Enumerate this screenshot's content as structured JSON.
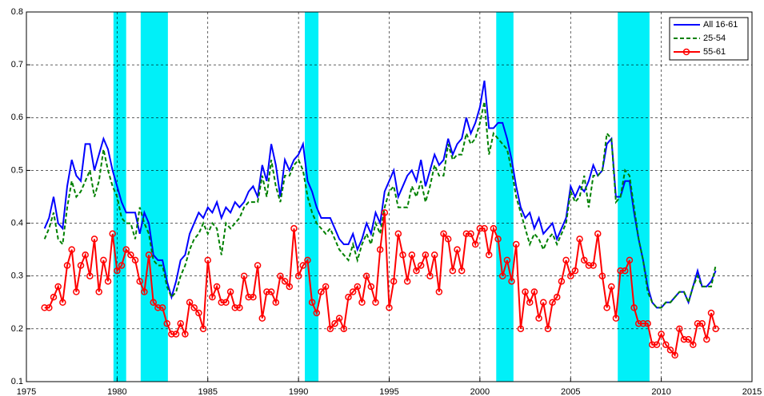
{
  "chart_data": {
    "type": "line",
    "x": [
      1976,
      1976.25,
      1976.5,
      1976.75,
      1977,
      1977.25,
      1977.5,
      1977.75,
      1978,
      1978.25,
      1978.5,
      1978.75,
      1979,
      1979.25,
      1979.5,
      1979.75,
      1980,
      1980.25,
      1980.5,
      1980.75,
      1981,
      1981.25,
      1981.5,
      1981.75,
      1982,
      1982.25,
      1982.5,
      1982.75,
      1983,
      1983.25,
      1983.5,
      1983.75,
      1984,
      1984.25,
      1984.5,
      1984.75,
      1985,
      1985.25,
      1985.5,
      1985.75,
      1986,
      1986.25,
      1986.5,
      1986.75,
      1987,
      1987.25,
      1987.5,
      1987.75,
      1988,
      1988.25,
      1988.5,
      1988.75,
      1989,
      1989.25,
      1989.5,
      1989.75,
      1990,
      1990.25,
      1990.5,
      1990.75,
      1991,
      1991.25,
      1991.5,
      1991.75,
      1992,
      1992.25,
      1992.5,
      1992.75,
      1993,
      1993.25,
      1993.5,
      1993.75,
      1994,
      1994.25,
      1994.5,
      1994.75,
      1995,
      1995.25,
      1995.5,
      1995.75,
      1996,
      1996.25,
      1996.5,
      1996.75,
      1997,
      1997.25,
      1997.5,
      1997.75,
      1998,
      1998.25,
      1998.5,
      1998.75,
      1999,
      1999.25,
      1999.5,
      1999.75,
      2000,
      2000.25,
      2000.5,
      2000.75,
      2001,
      2001.25,
      2001.5,
      2001.75,
      2002,
      2002.25,
      2002.5,
      2002.75,
      2003,
      2003.25,
      2003.5,
      2003.75,
      2004,
      2004.25,
      2004.5,
      2004.75,
      2005,
      2005.25,
      2005.5,
      2005.75,
      2006,
      2006.25,
      2006.5,
      2006.75,
      2007,
      2007.25,
      2007.5,
      2007.75,
      2008,
      2008.25,
      2008.5,
      2008.75,
      2009,
      2009.25,
      2009.5,
      2009.75,
      2010,
      2010.25,
      2010.5,
      2010.75,
      2011,
      2011.25,
      2011.5,
      2011.75,
      2012,
      2012.25,
      2012.5,
      2012.75,
      2013
    ],
    "series": [
      {
        "name": "All 16-61",
        "color": "#0000ff",
        "style": "solid",
        "marker": false,
        "values": [
          0.39,
          0.41,
          0.45,
          0.4,
          0.39,
          0.47,
          0.52,
          0.49,
          0.48,
          0.55,
          0.55,
          0.5,
          0.53,
          0.56,
          0.54,
          0.5,
          0.47,
          0.44,
          0.42,
          0.42,
          0.42,
          0.38,
          0.42,
          0.4,
          0.34,
          0.33,
          0.33,
          0.29,
          0.26,
          0.29,
          0.33,
          0.34,
          0.38,
          0.4,
          0.42,
          0.41,
          0.43,
          0.42,
          0.44,
          0.41,
          0.43,
          0.42,
          0.44,
          0.43,
          0.44,
          0.46,
          0.47,
          0.45,
          0.51,
          0.48,
          0.55,
          0.51,
          0.45,
          0.52,
          0.5,
          0.52,
          0.53,
          0.55,
          0.48,
          0.46,
          0.43,
          0.41,
          0.41,
          0.41,
          0.39,
          0.37,
          0.36,
          0.36,
          0.38,
          0.35,
          0.37,
          0.4,
          0.38,
          0.42,
          0.4,
          0.46,
          0.48,
          0.5,
          0.45,
          0.47,
          0.49,
          0.5,
          0.48,
          0.52,
          0.47,
          0.5,
          0.53,
          0.51,
          0.52,
          0.56,
          0.53,
          0.55,
          0.56,
          0.6,
          0.57,
          0.59,
          0.62,
          0.67,
          0.58,
          0.58,
          0.59,
          0.59,
          0.56,
          0.52,
          0.47,
          0.43,
          0.41,
          0.42,
          0.39,
          0.41,
          0.38,
          0.39,
          0.4,
          0.37,
          0.39,
          0.41,
          0.47,
          0.45,
          0.47,
          0.46,
          0.48,
          0.51,
          0.49,
          0.5,
          0.55,
          0.56,
          0.45,
          0.45,
          0.48,
          0.48,
          0.42,
          0.37,
          0.33,
          0.28,
          0.25,
          0.24,
          0.24,
          0.25,
          0.25,
          0.26,
          0.27,
          0.27,
          0.25,
          0.28,
          0.31,
          0.28,
          0.28,
          0.29,
          0.31
        ]
      },
      {
        "name": "25-54",
        "color": "#008000",
        "style": "dashed",
        "marker": false,
        "values": [
          0.37,
          0.39,
          0.42,
          0.37,
          0.36,
          0.43,
          0.48,
          0.45,
          0.46,
          0.48,
          0.5,
          0.45,
          0.48,
          0.54,
          0.5,
          0.47,
          0.45,
          0.41,
          0.4,
          0.4,
          0.37,
          0.43,
          0.4,
          0.38,
          0.33,
          0.32,
          0.32,
          0.28,
          0.26,
          0.27,
          0.3,
          0.32,
          0.35,
          0.37,
          0.38,
          0.4,
          0.38,
          0.4,
          0.39,
          0.34,
          0.4,
          0.39,
          0.4,
          0.41,
          0.43,
          0.44,
          0.44,
          0.44,
          0.49,
          0.45,
          0.52,
          0.47,
          0.44,
          0.49,
          0.49,
          0.51,
          0.52,
          0.5,
          0.45,
          0.42,
          0.4,
          0.39,
          0.38,
          0.39,
          0.37,
          0.35,
          0.34,
          0.33,
          0.36,
          0.33,
          0.36,
          0.38,
          0.36,
          0.4,
          0.38,
          0.43,
          0.46,
          0.47,
          0.43,
          0.43,
          0.43,
          0.47,
          0.45,
          0.48,
          0.44,
          0.47,
          0.51,
          0.49,
          0.49,
          0.55,
          0.52,
          0.53,
          0.53,
          0.57,
          0.55,
          0.56,
          0.59,
          0.63,
          0.53,
          0.57,
          0.56,
          0.55,
          0.54,
          0.5,
          0.45,
          0.42,
          0.39,
          0.36,
          0.38,
          0.37,
          0.35,
          0.37,
          0.38,
          0.36,
          0.38,
          0.4,
          0.46,
          0.44,
          0.45,
          0.49,
          0.43,
          0.49,
          0.49,
          0.5,
          0.57,
          0.56,
          0.44,
          0.45,
          0.5,
          0.49,
          0.43,
          0.37,
          0.33,
          0.27,
          0.25,
          0.24,
          0.24,
          0.25,
          0.25,
          0.26,
          0.27,
          0.27,
          0.25,
          0.28,
          0.3,
          0.28,
          0.28,
          0.28,
          0.32
        ]
      },
      {
        "name": "55-61",
        "color": "#ff0000",
        "style": "solid",
        "marker": true,
        "values": [
          0.24,
          0.24,
          0.26,
          0.28,
          0.25,
          0.32,
          0.35,
          0.27,
          0.32,
          0.34,
          0.3,
          0.37,
          0.27,
          0.33,
          0.29,
          0.38,
          0.31,
          0.32,
          0.35,
          0.34,
          0.33,
          0.29,
          0.27,
          0.34,
          0.25,
          0.24,
          0.24,
          0.21,
          0.19,
          0.19,
          0.21,
          0.19,
          0.25,
          0.24,
          0.23,
          0.2,
          0.33,
          0.26,
          0.28,
          0.25,
          0.25,
          0.27,
          0.24,
          0.24,
          0.3,
          0.26,
          0.26,
          0.32,
          0.22,
          0.27,
          0.27,
          0.25,
          0.3,
          0.29,
          0.28,
          0.39,
          0.3,
          0.32,
          0.33,
          0.25,
          0.23,
          0.27,
          0.28,
          0.2,
          0.21,
          0.22,
          0.2,
          0.26,
          0.27,
          0.28,
          0.25,
          0.3,
          0.28,
          0.25,
          0.35,
          0.42,
          0.24,
          0.29,
          0.38,
          0.34,
          0.29,
          0.34,
          0.31,
          0.32,
          0.34,
          0.3,
          0.34,
          0.27,
          0.38,
          0.37,
          0.31,
          0.35,
          0.31,
          0.38,
          0.38,
          0.36,
          0.39,
          0.39,
          0.34,
          0.39,
          0.37,
          0.3,
          0.33,
          0.29,
          0.36,
          0.2,
          0.27,
          0.25,
          0.27,
          0.22,
          0.25,
          0.2,
          0.25,
          0.26,
          0.29,
          0.33,
          0.3,
          0.31,
          0.37,
          0.33,
          0.32,
          0.32,
          0.38,
          0.3,
          0.24,
          0.28,
          0.22,
          0.31,
          0.31,
          0.33,
          0.24,
          0.21,
          0.21,
          0.21,
          0.17,
          0.17,
          0.19,
          0.17,
          0.16,
          0.15,
          0.2,
          0.18,
          0.18,
          0.17,
          0.21,
          0.21,
          0.18,
          0.23,
          0.2
        ]
      }
    ],
    "shaded_periods": [
      [
        1979.8,
        1980.5
      ],
      [
        1981.3,
        1982.8
      ],
      [
        1990.35,
        1991.1
      ],
      [
        2000.9,
        2001.85
      ],
      [
        2007.6,
        2009.35
      ]
    ],
    "shade_color": "#00f0f8",
    "xlim": [
      1975,
      2015
    ],
    "xticks": [
      1975,
      1980,
      1985,
      1990,
      1995,
      2000,
      2005,
      2010,
      2015
    ],
    "ylim": [
      0.1,
      0.8
    ],
    "yticks": [
      0.1,
      0.2,
      0.3,
      0.4,
      0.5,
      0.6,
      0.7,
      0.8
    ],
    "grid": true,
    "legend": "upper right"
  }
}
